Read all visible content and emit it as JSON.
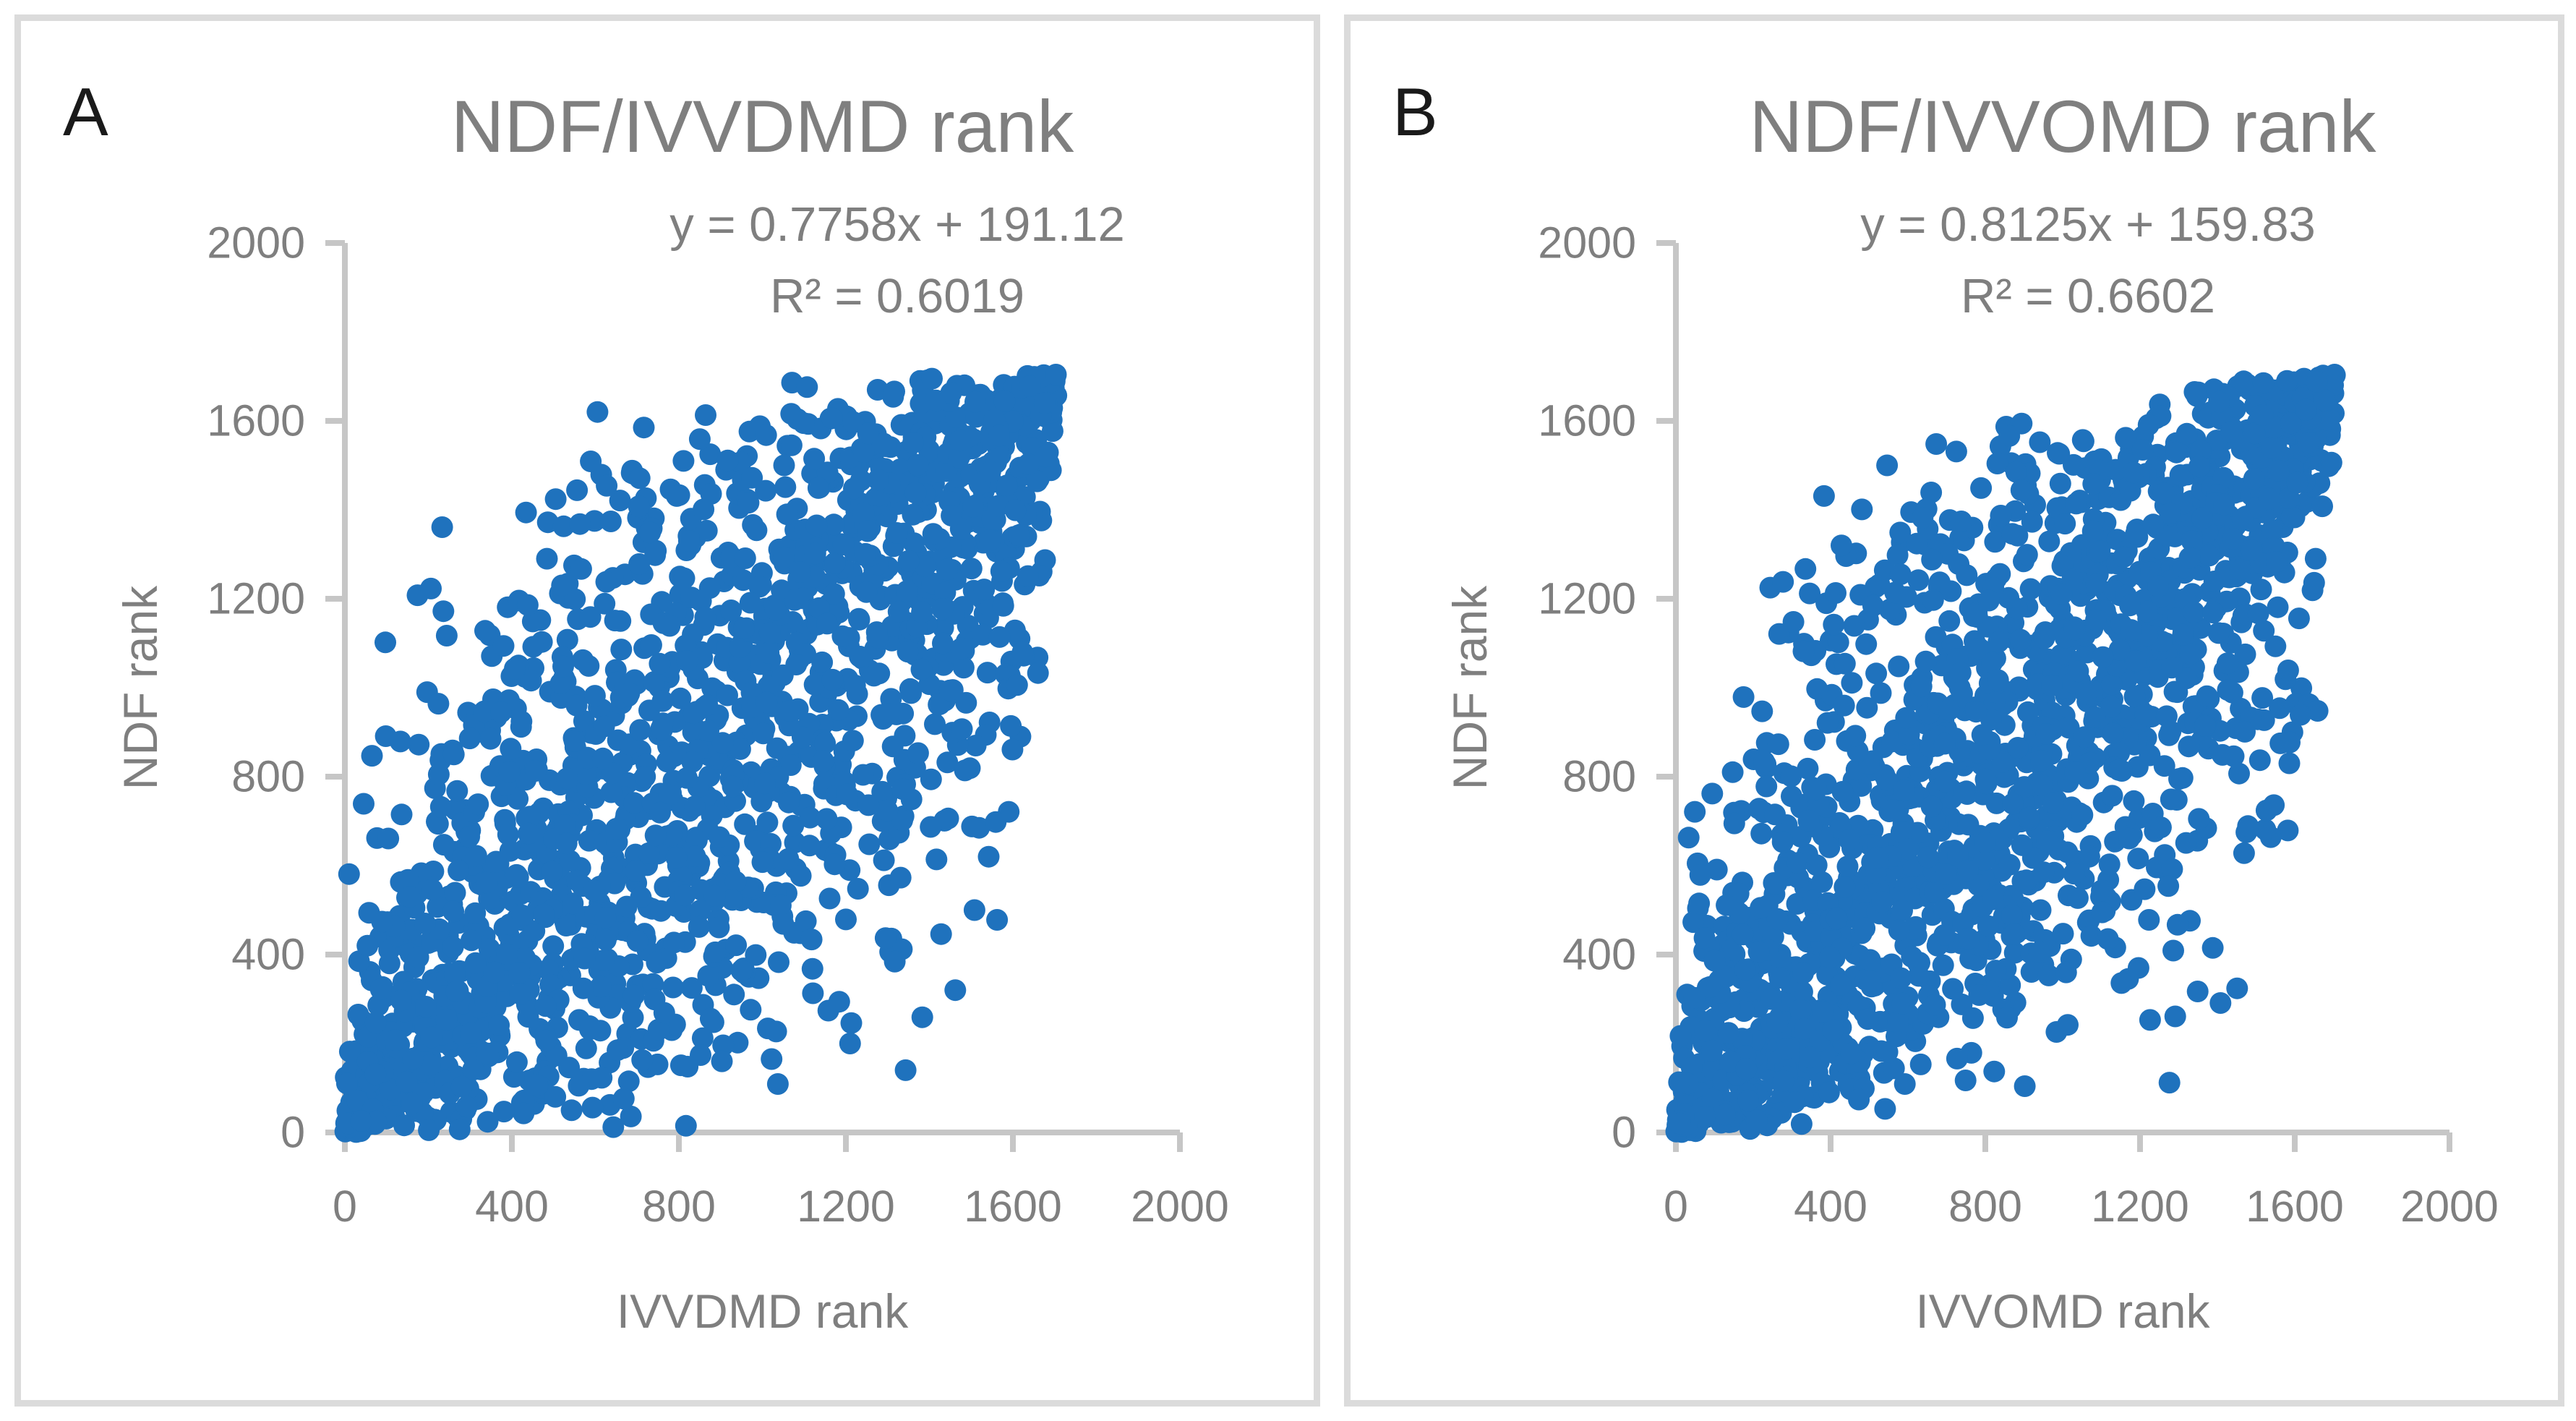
{
  "panels": [
    {
      "label": "A",
      "title": "NDF/IVVDMD rank",
      "equation": "y = 0.7758x + 191.12",
      "r_squared": "R² = 0.6019",
      "x_axis_title": "IVVDMD rank",
      "y_axis_title": "NDF rank"
    },
    {
      "label": "B",
      "title": "NDF/IVVOMD rank",
      "equation": "y = 0.8125x + 159.83",
      "r_squared": "R² = 0.6602",
      "x_axis_title": "IVVOMD rank",
      "y_axis_title": "NDF rank"
    }
  ],
  "chart_data": [
    {
      "type": "scatter",
      "title": "NDF/IVVDMD rank",
      "xlabel": "IVVDMD rank",
      "ylabel": "NDF rank",
      "xlim": [
        0,
        2000
      ],
      "ylim": [
        0,
        2000
      ],
      "x_ticks": [
        0,
        400,
        800,
        1200,
        1600,
        2000
      ],
      "y_ticks": [
        0,
        400,
        800,
        1200,
        1600,
        2000
      ],
      "grid": false,
      "legend": "none",
      "n_points": 1704,
      "max_rank": 1704,
      "regression": {
        "slope": 0.7758,
        "intercept": 191.12,
        "r_squared": 0.6019,
        "equation_text": "y = 0.7758x + 191.12",
        "r_squared_text": "R² = 0.6019"
      },
      "marker": {
        "shape": "circle",
        "color": "#1F72BD",
        "radius_px": 15
      },
      "generator": {
        "kind": "correlated-rank-pairs",
        "n": 1704,
        "rank_correlation": 0.7758,
        "seed": 1902131
      },
      "style": {
        "axis_color": "#C6C6C6",
        "axis_width": 8,
        "tick_len": 27,
        "tick_font": 61,
        "label_color": "#7F7F7F",
        "x_label_offset": 123,
        "y_label_offset": 55
      }
    },
    {
      "type": "scatter",
      "title": "NDF/IVVOMD rank",
      "xlabel": "IVVOMD rank",
      "ylabel": "NDF rank",
      "xlim": [
        0,
        2000
      ],
      "ylim": [
        0,
        2000
      ],
      "x_ticks": [
        0,
        400,
        800,
        1200,
        1600,
        2000
      ],
      "y_ticks": [
        0,
        400,
        800,
        1200,
        1600,
        2000
      ],
      "grid": false,
      "legend": "none",
      "n_points": 1704,
      "max_rank": 1704,
      "regression": {
        "slope": 0.8125,
        "intercept": 159.83,
        "r_squared": 0.6602,
        "equation_text": "y = 0.8125x + 159.83",
        "r_squared_text": "R² = 0.6602"
      },
      "marker": {
        "shape": "circle",
        "color": "#1F72BD",
        "radius_px": 15
      },
      "generator": {
        "kind": "correlated-rank-pairs",
        "n": 1704,
        "rank_correlation": 0.8125,
        "seed": 771042
      },
      "style": {
        "axis_color": "#C6C6C6",
        "axis_width": 8,
        "tick_len": 27,
        "tick_font": 61,
        "label_color": "#7F7F7F",
        "x_label_offset": 123,
        "y_label_offset": 55
      }
    }
  ]
}
